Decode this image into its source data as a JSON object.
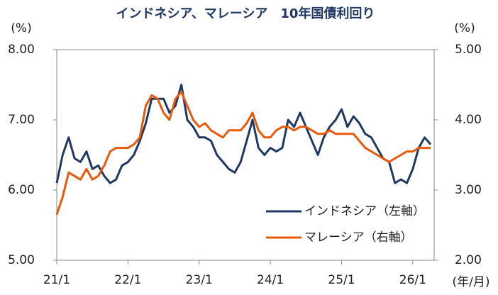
{
  "chart_data": {
    "type": "line",
    "title": "インドネシア、マレーシア　10年国債利回り",
    "y_unit": "(%)",
    "y2_unit": "(%)",
    "x_unit": "(年/月)",
    "x": [
      2021,
      2021.083,
      2021.167,
      2021.25,
      2021.333,
      2021.417,
      2021.5,
      2021.583,
      2021.667,
      2021.75,
      2021.833,
      2021.917,
      2022,
      2022.083,
      2022.167,
      2022.25,
      2022.333,
      2022.417,
      2022.5,
      2022.583,
      2022.667,
      2022.75,
      2022.833,
      2022.917,
      2023,
      2023.083,
      2023.167,
      2023.25,
      2023.333,
      2023.417,
      2023.5,
      2023.583,
      2023.667,
      2023.75,
      2023.833,
      2023.917,
      2024,
      2024.083,
      2024.167,
      2024.25,
      2024.333,
      2024.417,
      2024.5,
      2024.583,
      2024.667,
      2024.75,
      2024.833,
      2024.917,
      2025,
      2025.083,
      2025.167,
      2025.25,
      2025.333,
      2025.417,
      2025.5,
      2025.583,
      2025.667,
      2025.75,
      2025.833,
      2025.917,
      2026,
      2026.083,
      2026.167,
      2026.25
    ],
    "series": [
      {
        "name": "インドネシア（左軸）",
        "color": "#1f3864",
        "axis": "y",
        "values": [
          6.1,
          6.5,
          6.75,
          6.45,
          6.4,
          6.55,
          6.3,
          6.35,
          6.2,
          6.1,
          6.15,
          6.35,
          6.4,
          6.5,
          6.7,
          6.95,
          7.3,
          7.3,
          7.3,
          7.1,
          7.2,
          7.5,
          7.0,
          6.9,
          6.75,
          6.75,
          6.7,
          6.5,
          6.4,
          6.3,
          6.25,
          6.4,
          6.7,
          7.0,
          6.6,
          6.5,
          6.6,
          6.55,
          6.6,
          7.0,
          6.9,
          7.1,
          6.9,
          6.7,
          6.5,
          6.75,
          6.9,
          7.0,
          7.15,
          6.9,
          7.05,
          6.95,
          6.8,
          6.75,
          6.6,
          6.45,
          6.4,
          6.1,
          6.15,
          6.1,
          6.3,
          6.6,
          6.75,
          6.65
        ]
      },
      {
        "name": "マレーシア（右軸）",
        "color": "#e8590c",
        "axis": "y2",
        "values": [
          2.65,
          2.9,
          3.25,
          3.2,
          3.15,
          3.3,
          3.15,
          3.2,
          3.35,
          3.55,
          3.6,
          3.6,
          3.6,
          3.65,
          3.75,
          4.2,
          4.35,
          4.3,
          4.1,
          4.0,
          4.3,
          4.4,
          4.2,
          4.0,
          3.9,
          3.95,
          3.85,
          3.8,
          3.75,
          3.85,
          3.85,
          3.85,
          3.95,
          4.1,
          3.85,
          3.75,
          3.75,
          3.85,
          3.9,
          3.9,
          3.85,
          3.9,
          3.9,
          3.85,
          3.8,
          3.8,
          3.85,
          3.8,
          3.8,
          3.8,
          3.8,
          3.7,
          3.6,
          3.55,
          3.5,
          3.45,
          3.4,
          3.45,
          3.5,
          3.55,
          3.55,
          3.6,
          3.6,
          3.6
        ]
      }
    ],
    "xlim": [
      2021,
      2026.3
    ],
    "xticks": [
      {
        "value": 2021,
        "label": "21/1"
      },
      {
        "value": 2022,
        "label": "22/1"
      },
      {
        "value": 2023,
        "label": "23/1"
      },
      {
        "value": 2024,
        "label": "24/1"
      },
      {
        "value": 2025,
        "label": "25/1"
      },
      {
        "value": 2026,
        "label": "26/1"
      }
    ],
    "ylim": [
      5,
      8
    ],
    "yticks": [
      {
        "value": 5,
        "label": "5.00"
      },
      {
        "value": 6,
        "label": "6.00"
      },
      {
        "value": 7,
        "label": "7.00"
      },
      {
        "value": 8,
        "label": "8.00"
      }
    ],
    "y2lim": [
      2,
      5
    ],
    "y2ticks": [
      {
        "value": 2,
        "label": "2.00"
      },
      {
        "value": 3,
        "label": "3.00"
      },
      {
        "value": 4,
        "label": "4.00"
      },
      {
        "value": 5,
        "label": "5.00"
      }
    ],
    "grid": false,
    "legend": "lower right"
  }
}
